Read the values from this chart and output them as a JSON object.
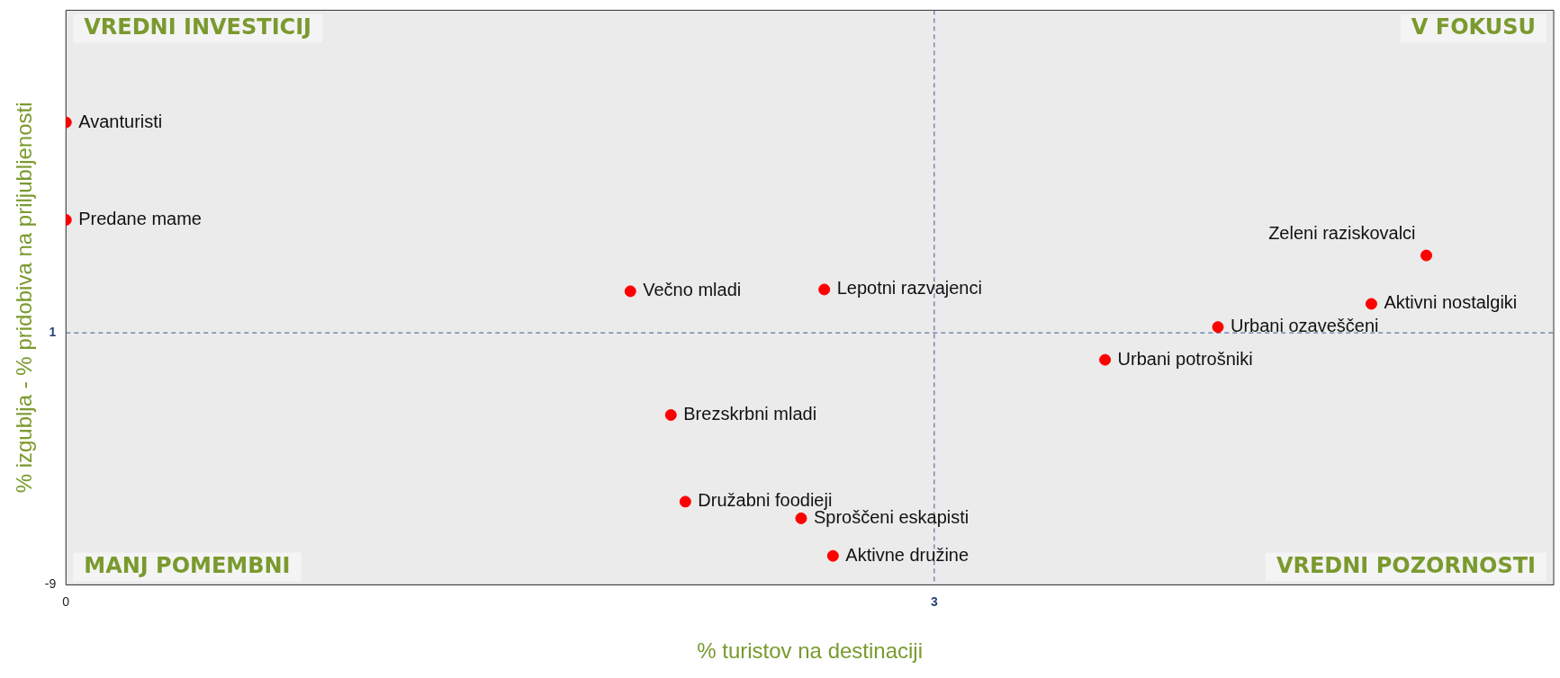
{
  "chart_data": {
    "type": "scatter",
    "xlabel": "% turistov na destinaciji",
    "ylabel": "% izgublja - % pridobiva na priljubljenosti",
    "x": [
      0,
      0,
      1.95,
      2.62,
      4.7,
      4.51,
      3.98,
      3.59,
      2.09,
      2.14,
      2.54,
      2.65
    ],
    "series": [
      {
        "color": "#ff0000",
        "values": [
          9.35,
          5.48,
          2.65,
          2.72,
          4.07,
          2.15,
          1.23,
          -0.07,
          -2.26,
          -5.7,
          -6.36,
          -7.85
        ],
        "value_labels": [
          "Avanturisti",
          "Predane mame",
          "Večno mladi",
          "Lepotni razvajenci",
          "Zeleni raziskovalci",
          "Aktivni nostalgiki",
          "Urbani ozaveščeni",
          "Urbani potrošniki",
          "Brezskrbni mladi",
          "Družabni foodieji",
          "Sproščeni eskapisti",
          "Aktivne družine"
        ]
      }
    ],
    "xlim": [
      0,
      5.14
    ],
    "ylim": [
      -9,
      13.8
    ],
    "xticks": [
      0,
      3
    ],
    "yticks": [
      -9,
      1
    ],
    "ref_lines": [
      {
        "axis": "x",
        "value": 3,
        "color": "#3a5a8c",
        "line_style": "dashed"
      },
      {
        "axis": "y",
        "value": 1,
        "color": "#3a5a8c",
        "line_style": "dashed"
      }
    ],
    "annotations": [
      "VREDNI INVESTICIJ",
      "V FOKUSU",
      "MANJ POMEMBNI",
      "VREDNI POZORNOSTI"
    ],
    "grid": false,
    "legend": false,
    "marker": "circle"
  }
}
